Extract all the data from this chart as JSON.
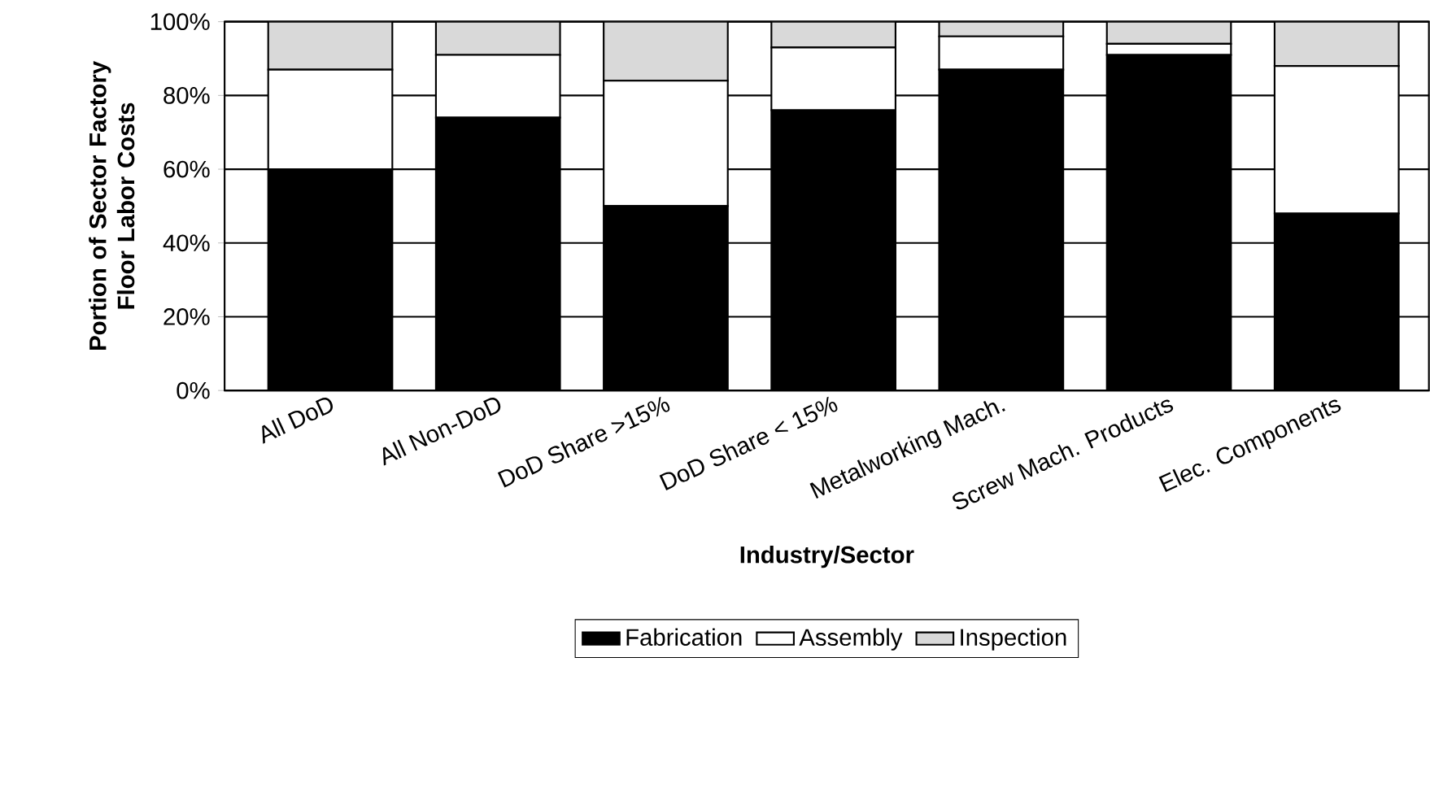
{
  "chart_data": {
    "type": "bar",
    "stacked": true,
    "xlabel": "Industry/Sector",
    "ylabel": "Portion of Sector Factory Floor Labor Costs",
    "categories": [
      "All DoD",
      "All Non-DoD",
      "DoD Share >15%",
      "DoD Share < 15%",
      "Metalworking Mach.",
      "Screw Mach. Products",
      "Elec. Components"
    ],
    "series": [
      {
        "name": "Fabrication",
        "color": "#000000",
        "values": [
          60,
          74,
          50,
          76,
          87,
          91,
          48
        ]
      },
      {
        "name": "Assembly",
        "color": "#ffffff",
        "values": [
          27,
          17,
          34,
          17,
          9,
          3,
          40
        ]
      },
      {
        "name": "Inspection",
        "color": "#d9d9d9",
        "values": [
          13,
          9,
          16,
          7,
          4,
          6,
          12
        ]
      }
    ],
    "ylim": [
      0,
      100
    ],
    "yticks": [
      {
        "value": 0,
        "label": "0%"
      },
      {
        "value": 20,
        "label": "20%"
      },
      {
        "value": 40,
        "label": "40%"
      },
      {
        "value": 60,
        "label": "60%"
      },
      {
        "value": 80,
        "label": "80%"
      },
      {
        "value": 100,
        "label": "100%"
      }
    ],
    "grid": "y",
    "legend": "bottom"
  }
}
